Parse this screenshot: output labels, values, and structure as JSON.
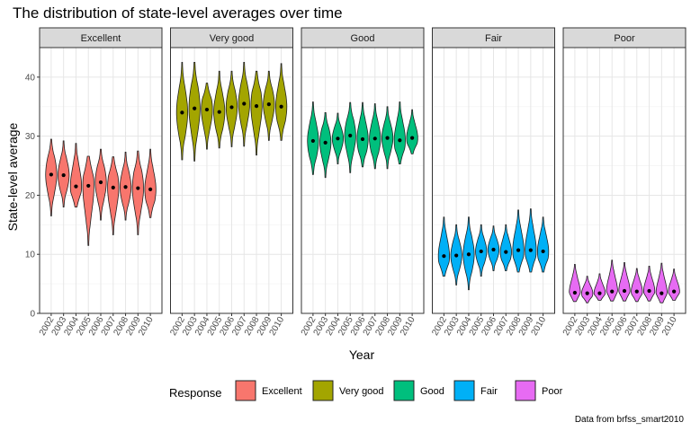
{
  "chart_data": {
    "type": "violin",
    "title": "The distribution of state-level averages over time",
    "xlabel": "Year",
    "ylabel": "State-level average",
    "caption": "Data from brfss_smart2010",
    "ylim": [
      0,
      45
    ],
    "yticks": [
      0,
      10,
      20,
      30,
      40
    ],
    "years": [
      "2002",
      "2003",
      "2004",
      "2005",
      "2006",
      "2007",
      "2008",
      "2009",
      "2010"
    ],
    "legend": {
      "title": "Response",
      "position": "bottom"
    },
    "grid": true,
    "facets": [
      {
        "name": "Excellent",
        "color": "#F8766D",
        "means": [
          23.5,
          23.4,
          21.5,
          21.6,
          22.2,
          21.3,
          21.4,
          21.2,
          21.0
        ],
        "min": [
          16.5,
          18.0,
          18.0,
          11.5,
          15.8,
          13.3,
          15.8,
          13.3,
          16.2
        ],
        "max": [
          29.5,
          29.2,
          28.8,
          26.6,
          27.8,
          26.5,
          27.3,
          27.5,
          27.8
        ]
      },
      {
        "name": "Very good",
        "color": "#A3A500",
        "means": [
          34.0,
          34.7,
          34.5,
          34.1,
          34.9,
          35.5,
          35.1,
          35.4,
          35.0
        ],
        "min": [
          26.0,
          25.8,
          27.8,
          28.0,
          28.2,
          28.3,
          26.8,
          29.3,
          29.3
        ],
        "max": [
          42.5,
          42.5,
          39.0,
          41.0,
          41.0,
          42.5,
          41.0,
          41.0,
          42.3
        ]
      },
      {
        "name": "Good",
        "color": "#00BF7D",
        "means": [
          29.2,
          28.9,
          29.6,
          30.1,
          29.5,
          29.6,
          29.7,
          29.3,
          29.7
        ],
        "min": [
          23.5,
          23.0,
          25.3,
          23.8,
          24.8,
          24.5,
          24.5,
          25.3,
          27.0
        ],
        "max": [
          35.8,
          34.0,
          33.9,
          35.7,
          35.7,
          35.5,
          35.0,
          35.8,
          34.5
        ]
      },
      {
        "name": "Fair",
        "color": "#00B0F6",
        "means": [
          9.7,
          9.8,
          10.0,
          10.5,
          10.8,
          10.4,
          10.7,
          10.7,
          10.5
        ],
        "min": [
          6.3,
          4.8,
          4.0,
          6.3,
          7.2,
          7.2,
          7.0,
          7.0,
          7.0
        ],
        "max": [
          16.3,
          15.0,
          16.3,
          15.0,
          14.8,
          15.0,
          17.5,
          17.7,
          16.3
        ]
      },
      {
        "name": "Poor",
        "color": "#E76BF3",
        "means": [
          3.5,
          3.4,
          3.4,
          3.7,
          3.8,
          3.7,
          3.8,
          3.4,
          3.7
        ],
        "min": [
          2.0,
          1.8,
          2.2,
          2.1,
          2.1,
          2.0,
          2.1,
          1.8,
          2.2
        ],
        "max": [
          8.3,
          6.3,
          6.7,
          9.0,
          8.6,
          7.6,
          8.0,
          8.5,
          7.5
        ]
      }
    ]
  }
}
